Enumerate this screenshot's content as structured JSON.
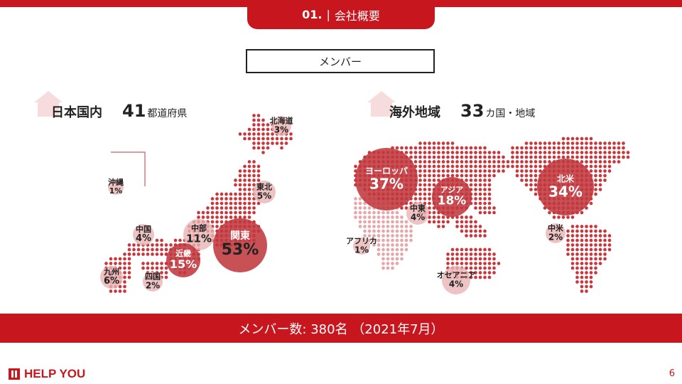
{
  "header": {
    "number": "01.",
    "separator": "|",
    "title": "会社概要"
  },
  "section_title": "メンバー",
  "domestic": {
    "title": "日本国内",
    "count": "41",
    "unit": "都道府県"
  },
  "overseas": {
    "title": "海外地域",
    "count": "33",
    "unit": "カ国・地域"
  },
  "chart_data": [
    {
      "type": "bubble",
      "title": "日本国内",
      "regions": [
        {
          "name": "北海道",
          "value": "3%",
          "percent": 3
        },
        {
          "name": "東北",
          "value": "5%",
          "percent": 5
        },
        {
          "name": "関東",
          "value": "53%",
          "percent": 53
        },
        {
          "name": "中部",
          "value": "11%",
          "percent": 11
        },
        {
          "name": "近畿",
          "value": "15%",
          "percent": 15
        },
        {
          "name": "中国",
          "value": "4%",
          "percent": 4
        },
        {
          "name": "四国",
          "value": "2%",
          "percent": 2
        },
        {
          "name": "九州",
          "value": "6%",
          "percent": 6
        },
        {
          "name": "沖縄",
          "value": "1%",
          "percent": 1
        }
      ]
    },
    {
      "type": "bubble",
      "title": "海外地域",
      "regions": [
        {
          "name": "ヨーロッパ",
          "value": "37%",
          "percent": 37
        },
        {
          "name": "アジア",
          "value": "18%",
          "percent": 18
        },
        {
          "name": "中東",
          "value": "4%",
          "percent": 4
        },
        {
          "name": "アフリカ",
          "value": "1%",
          "percent": 1
        },
        {
          "name": "オセアニア",
          "value": "4%",
          "percent": 4
        },
        {
          "name": "北米",
          "value": "34%",
          "percent": 34
        },
        {
          "name": "中米",
          "value": "2%",
          "percent": 2
        }
      ]
    }
  ],
  "footer_bar": "メンバー数: 380名 （2021年7月）",
  "logo_text": "HELP YOU",
  "page_number": "6",
  "colors": {
    "accent": "#c8161e",
    "dot": "#c9373d",
    "bubble_large": "#c0393f",
    "bubble_small": "#e9b4b4"
  }
}
